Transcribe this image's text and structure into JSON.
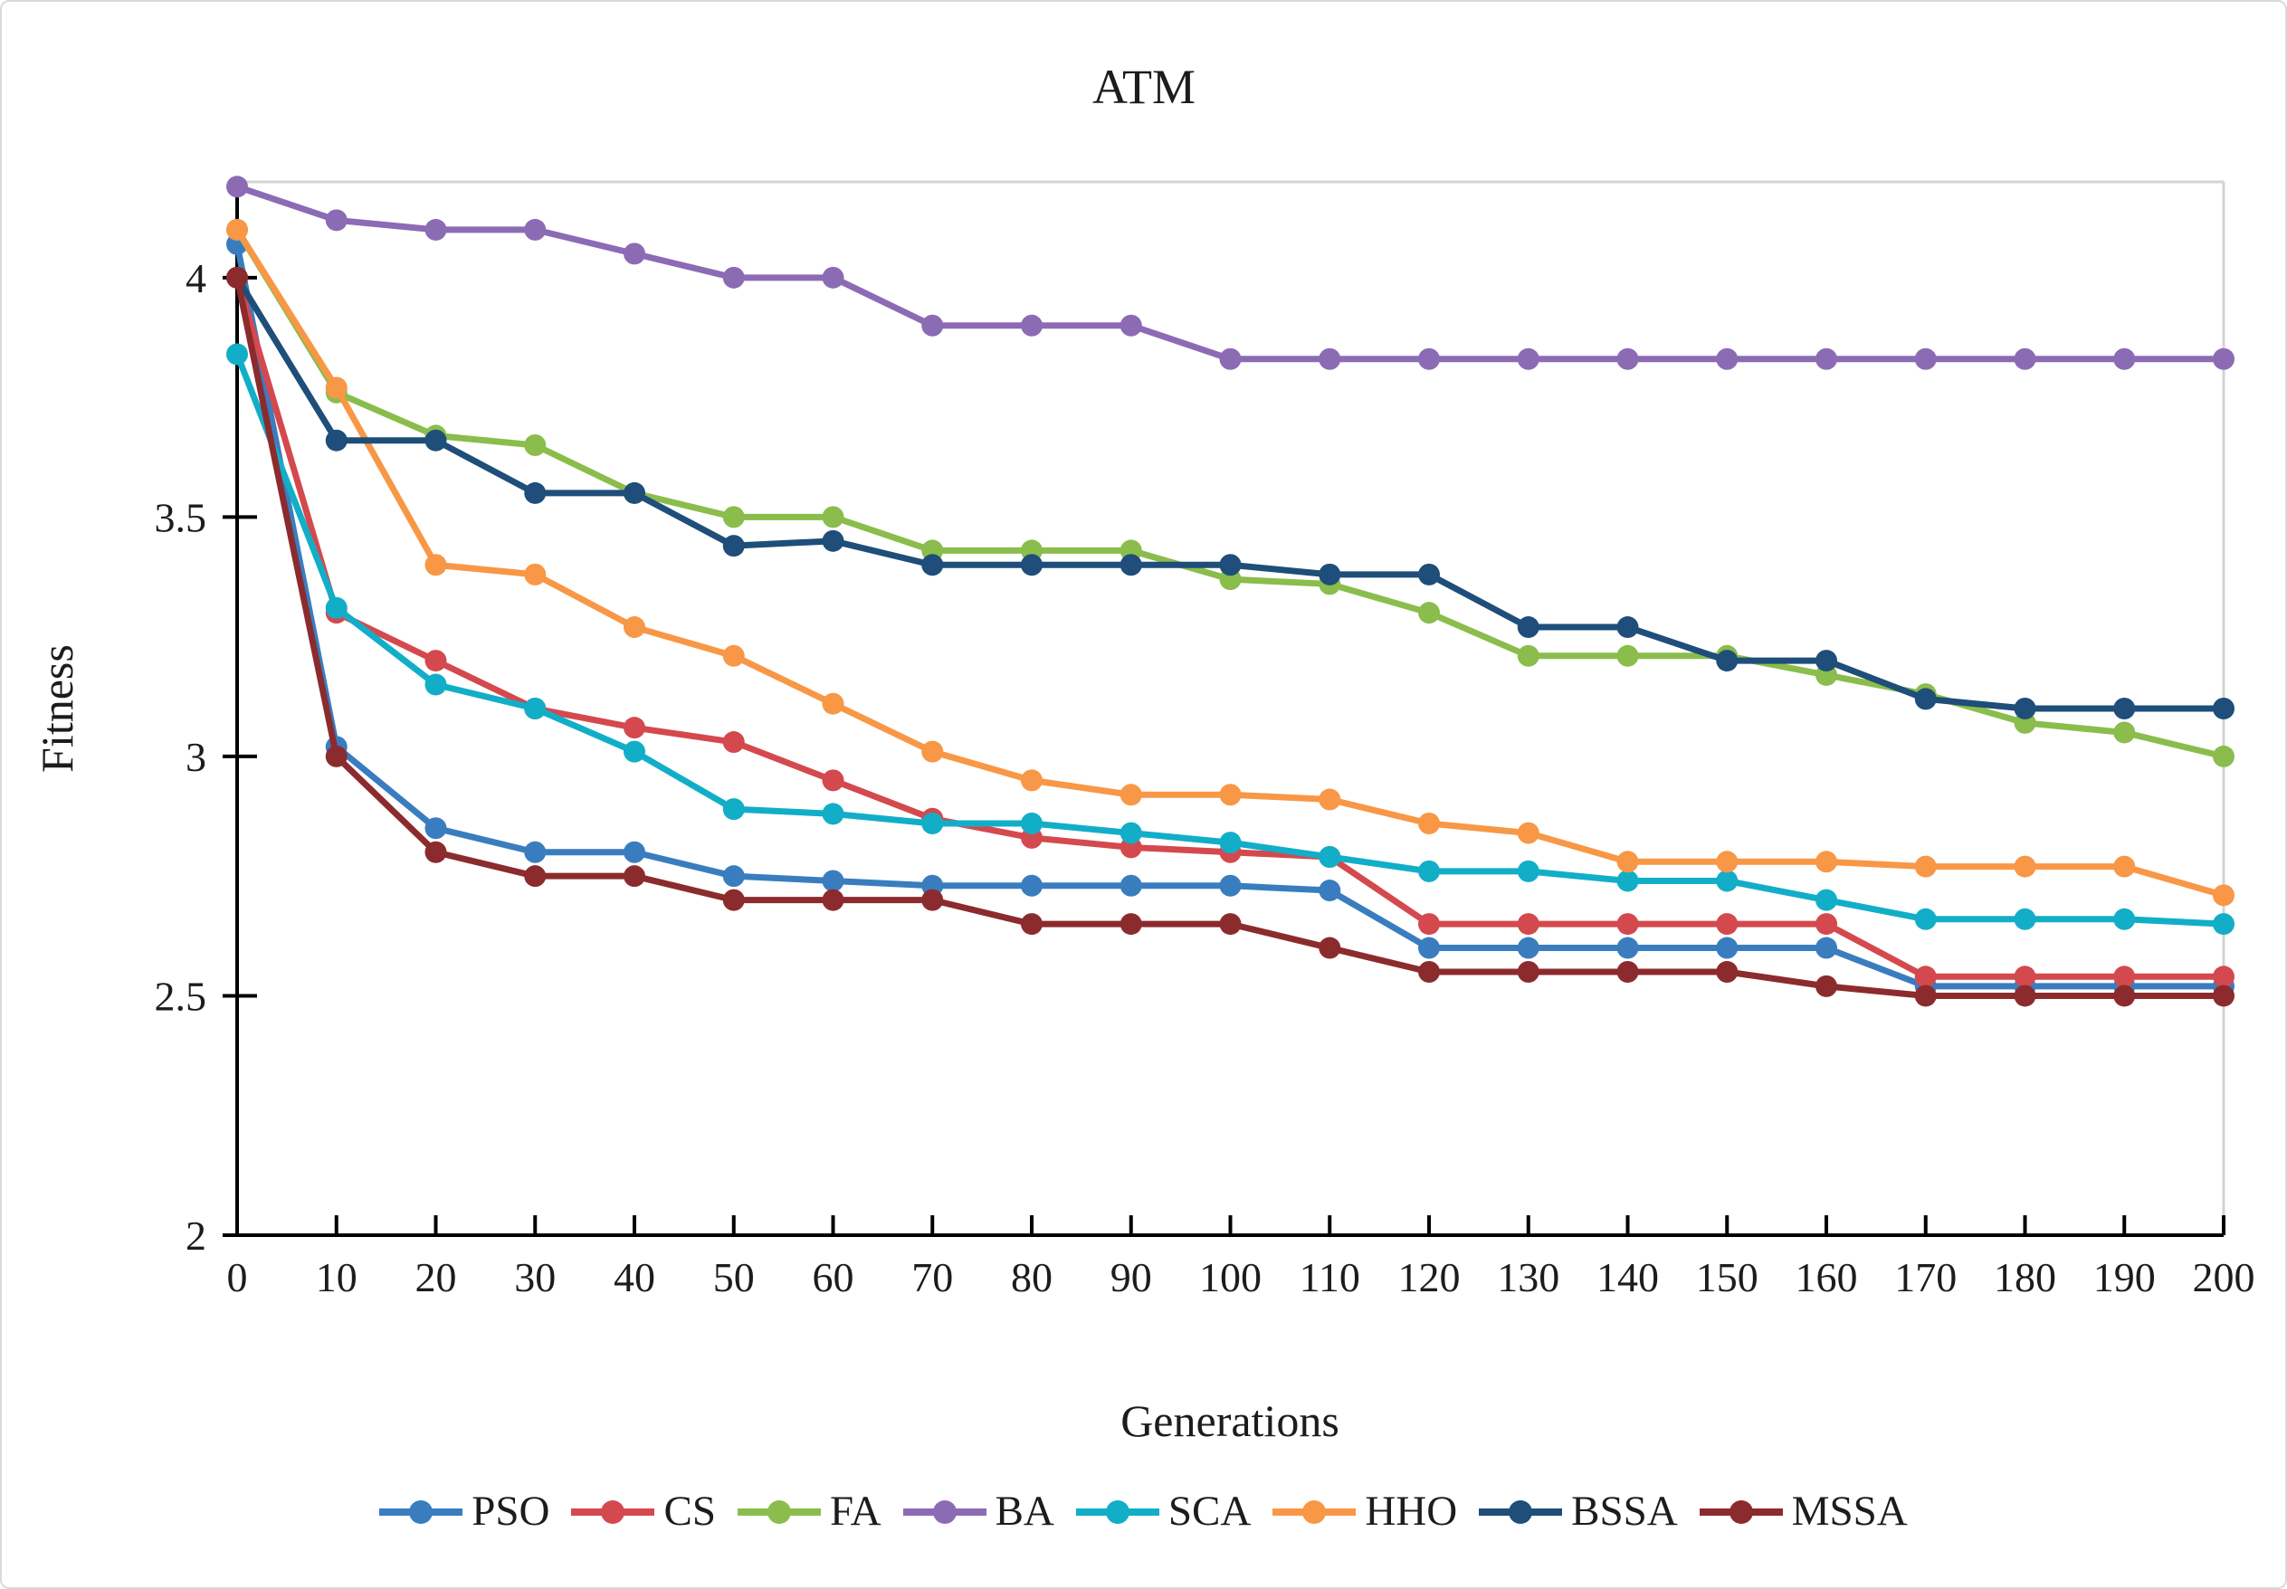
{
  "chart_data": {
    "type": "line",
    "title": "ATM",
    "xlabel": "Generations",
    "ylabel": "Fitness",
    "x": [
      0,
      10,
      20,
      30,
      40,
      50,
      60,
      70,
      80,
      90,
      100,
      110,
      120,
      130,
      140,
      150,
      160,
      170,
      180,
      190,
      200
    ],
    "xlim": [
      0,
      200
    ],
    "ylim": [
      2.0,
      4.2
    ],
    "xticks": [
      0,
      10,
      20,
      30,
      40,
      50,
      60,
      70,
      80,
      90,
      100,
      110,
      120,
      130,
      140,
      150,
      160,
      170,
      180,
      190,
      200
    ],
    "yticks": [
      4,
      3.5,
      3,
      2.5,
      2
    ],
    "ytick_labels": [
      "4",
      "3.5",
      "3",
      "2.5",
      "2"
    ],
    "grid": false,
    "legend_position": "bottom",
    "axis_color": "#000000",
    "plot_border_color": "#d3d3d3",
    "series": [
      {
        "name": "PSO",
        "color": "#3a7dbf",
        "values": [
          4.07,
          3.02,
          2.85,
          2.8,
          2.8,
          2.75,
          2.74,
          2.73,
          2.73,
          2.73,
          2.73,
          2.72,
          2.6,
          2.6,
          2.6,
          2.6,
          2.6,
          2.52,
          2.52,
          2.52,
          2.52
        ]
      },
      {
        "name": "CS",
        "color": "#d4494e",
        "values": [
          4.0,
          3.3,
          3.2,
          3.1,
          3.06,
          3.03,
          2.95,
          2.87,
          2.83,
          2.81,
          2.8,
          2.79,
          2.65,
          2.65,
          2.65,
          2.65,
          2.65,
          2.54,
          2.54,
          2.54,
          2.54
        ]
      },
      {
        "name": "FA",
        "color": "#8abd4c",
        "values": [
          4.1,
          3.76,
          3.67,
          3.65,
          3.55,
          3.5,
          3.5,
          3.43,
          3.43,
          3.43,
          3.37,
          3.36,
          3.3,
          3.21,
          3.21,
          3.21,
          3.17,
          3.13,
          3.07,
          3.05,
          3.0
        ]
      },
      {
        "name": "BA",
        "color": "#8c6bb5",
        "values": [
          4.19,
          4.12,
          4.1,
          4.1,
          4.05,
          4.0,
          4.0,
          3.9,
          3.9,
          3.9,
          3.83,
          3.83,
          3.83,
          3.83,
          3.83,
          3.83,
          3.83,
          3.83,
          3.83,
          3.83,
          3.83
        ]
      },
      {
        "name": "SCA",
        "color": "#12aec8",
        "values": [
          3.84,
          3.31,
          3.15,
          3.1,
          3.01,
          2.89,
          2.88,
          2.86,
          2.86,
          2.84,
          2.82,
          2.79,
          2.76,
          2.76,
          2.74,
          2.74,
          2.7,
          2.66,
          2.66,
          2.66,
          2.65
        ]
      },
      {
        "name": "HHO",
        "color": "#f89746",
        "values": [
          4.1,
          3.77,
          3.4,
          3.38,
          3.27,
          3.21,
          3.11,
          3.01,
          2.95,
          2.92,
          2.92,
          2.91,
          2.86,
          2.84,
          2.78,
          2.78,
          2.78,
          2.77,
          2.77,
          2.77,
          2.71
        ]
      },
      {
        "name": "BSSA",
        "color": "#1e4e79",
        "values": [
          4.0,
          3.66,
          3.66,
          3.55,
          3.55,
          3.44,
          3.45,
          3.4,
          3.4,
          3.4,
          3.4,
          3.38,
          3.38,
          3.27,
          3.27,
          3.2,
          3.2,
          3.12,
          3.1,
          3.1,
          3.1
        ]
      },
      {
        "name": "MSSA",
        "color": "#8c2b2d",
        "values": [
          4.0,
          3.0,
          2.8,
          2.75,
          2.75,
          2.7,
          2.7,
          2.7,
          2.65,
          2.65,
          2.65,
          2.6,
          2.55,
          2.55,
          2.55,
          2.55,
          2.52,
          2.5,
          2.5,
          2.5,
          2.5
        ]
      }
    ]
  }
}
